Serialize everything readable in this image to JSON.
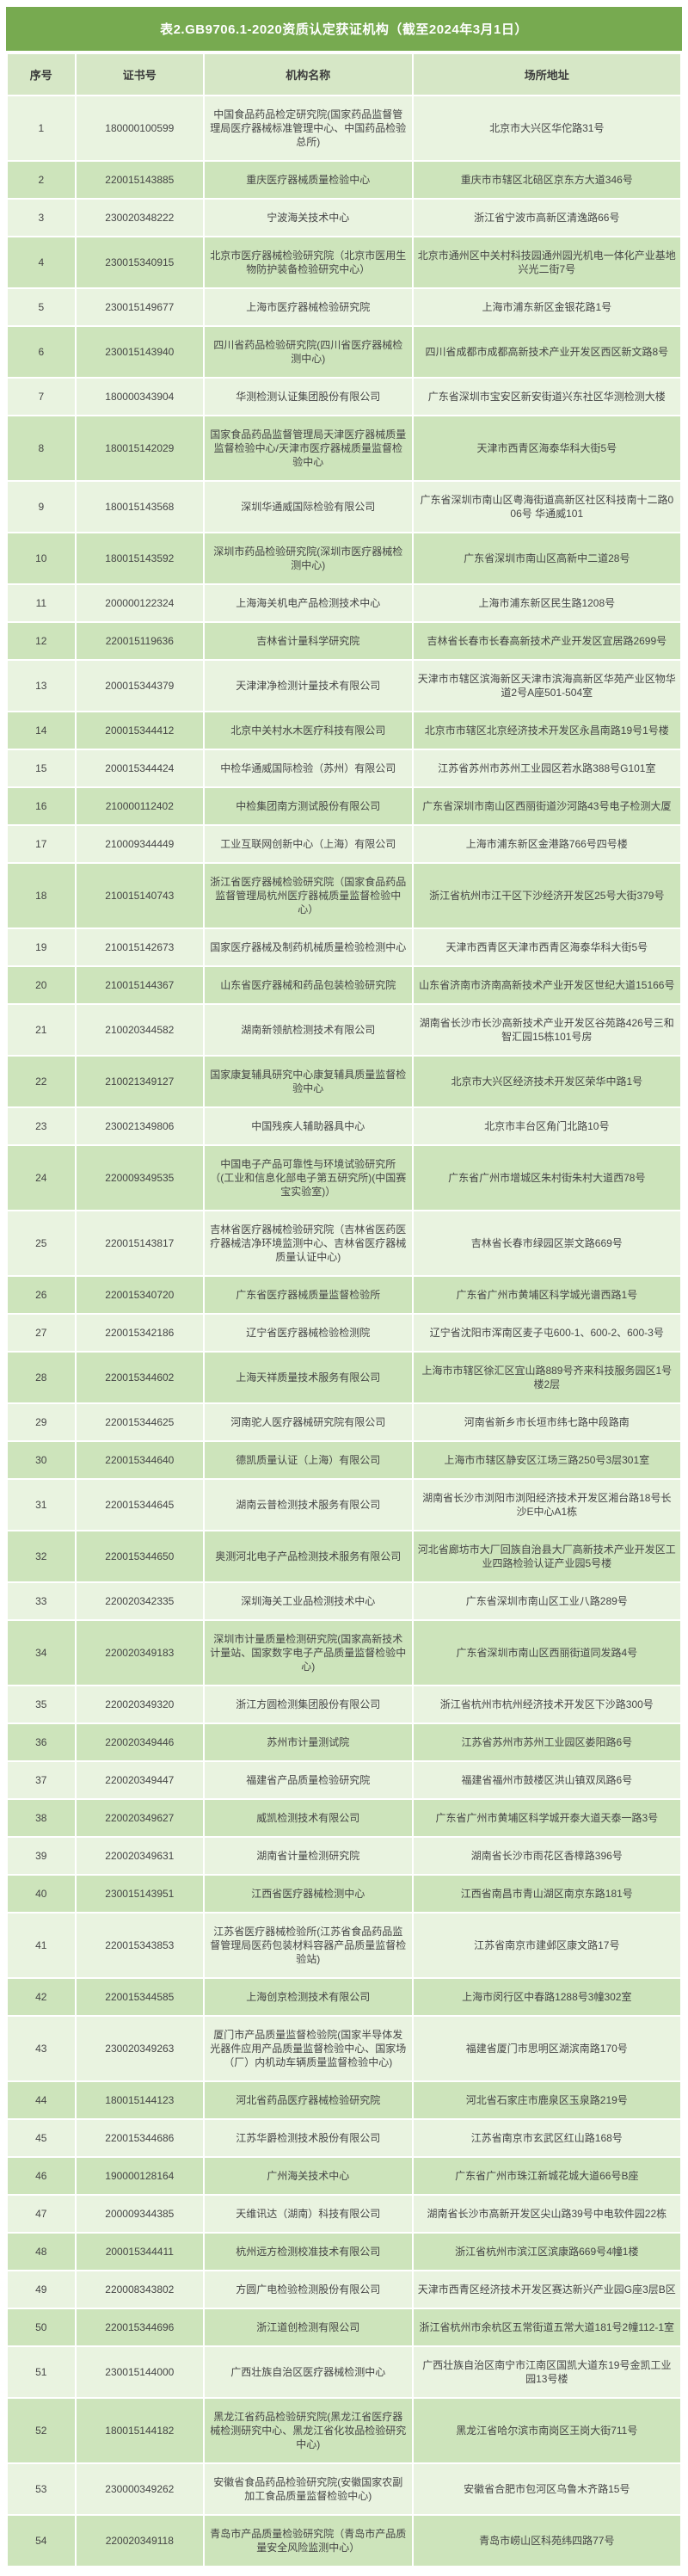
{
  "table": {
    "title": "表2.GB9706.1-2020资质认定获证机构（截至2024年3月1日）",
    "columns": [
      "序号",
      "证书号",
      "机构名称",
      "场所地址"
    ],
    "colors": {
      "title_bg": "#77aa50",
      "title_text": "#ffffff",
      "header_bg": "#d6e7c6",
      "row_odd_bg": "#e9f3e0",
      "row_even_bg": "#cde4bb",
      "text": "#454545",
      "grid": "#ffffff"
    },
    "rows": [
      [
        "1",
        "180000100599",
        "中国食品药品检定研究院(国家药品监督管理局医疗器械标准管理中心、中国药品检验总所)",
        "北京市大兴区华佗路31号"
      ],
      [
        "2",
        "220015143885",
        "重庆医疗器械质量检验中心",
        "重庆市市辖区北碚区京东方大道346号"
      ],
      [
        "3",
        "230020348222",
        "宁波海关技术中心",
        "浙江省宁波市高新区清逸路66号"
      ],
      [
        "4",
        "230015340915",
        "北京市医疗器械检验研究院（北京市医用生物防护装备检验研究中心）",
        "北京市通州区中关村科技园通州园光机电一体化产业基地兴光二街7号"
      ],
      [
        "5",
        "230015149677",
        "上海市医疗器械检验研究院",
        "上海市浦东新区金银花路1号"
      ],
      [
        "6",
        "230015143940",
        "四川省药品检验研究院(四川省医疗器械检测中心)",
        "四川省成都市成都高新技术产业开发区西区新文路8号"
      ],
      [
        "7",
        "180000343904",
        "华测检测认证集团股份有限公司",
        "广东省深圳市宝安区新安街道兴东社区华测检测大楼"
      ],
      [
        "8",
        "180015142029",
        "国家食品药品监督管理局天津医疗器械质量监督检验中心/天津市医疗器械质量监督检验中心",
        "天津市西青区海泰华科大街5号"
      ],
      [
        "9",
        "180015143568",
        "深圳华通威国际检验有限公司",
        "广东省深圳市南山区粤海街道高新区社区科技南十二路006号 华通威101"
      ],
      [
        "10",
        "180015143592",
        "深圳市药品检验研究院(深圳市医疗器械检测中心)",
        "广东省深圳市南山区高新中二道28号"
      ],
      [
        "11",
        "200000122324",
        "上海海关机电产品检测技术中心",
        "上海市浦东新区民生路1208号"
      ],
      [
        "12",
        "220015119636",
        "吉林省计量科学研究院",
        "吉林省长春市长春高新技术产业开发区宜居路2699号"
      ],
      [
        "13",
        "200015344379",
        "天津津净检测计量技术有限公司",
        "天津市市辖区滨海新区天津市滨海高新区华苑产业区物华道2号A座501-504室"
      ],
      [
        "14",
        "200015344412",
        "北京中关村水木医疗科技有限公司",
        "北京市市辖区北京经济技术开发区永昌南路19号1号楼"
      ],
      [
        "15",
        "200015344424",
        "中检华通威国际检验（苏州）有限公司",
        "江苏省苏州市苏州工业园区若水路388号G101室"
      ],
      [
        "16",
        "210000112402",
        "中检集团南方测试股份有限公司",
        "广东省深圳市南山区西丽街道沙河路43号电子检测大厦"
      ],
      [
        "17",
        "210009344449",
        "工业互联网创新中心（上海）有限公司",
        "上海市浦东新区金港路766号四号楼"
      ],
      [
        "18",
        "210015140743",
        "浙江省医疗器械检验研究院（国家食品药品监督管理局杭州医疗器械质量监督检验中心）",
        "浙江省杭州市江干区下沙经济开发区25号大街379号"
      ],
      [
        "19",
        "210015142673",
        "国家医疗器械及制药机械质量检验检测中心",
        "天津市西青区天津市西青区海泰华科大街5号"
      ],
      [
        "20",
        "210015144367",
        "山东省医疗器械和药品包装检验研究院",
        "山东省济南市济南高新技术产业开发区世纪大道15166号"
      ],
      [
        "21",
        "210020344582",
        "湖南新领航检测技术有限公司",
        "湖南省长沙市长沙高新技术产业开发区谷苑路426号三和智汇园15栋101号房"
      ],
      [
        "22",
        "210021349127",
        "国家康复辅具研究中心康复辅具质量监督检验中心",
        "北京市大兴区经济技术开发区荣华中路1号"
      ],
      [
        "23",
        "230021349806",
        "中国残疾人辅助器具中心",
        "北京市丰台区角门北路10号"
      ],
      [
        "24",
        "220009349535",
        "中国电子产品可靠性与环境试验研究所（(工业和信息化部电子第五研究所)(中国赛宝实验室)）",
        "广东省广州市增城区朱村街朱村大道西78号"
      ],
      [
        "25",
        "220015143817",
        "吉林省医疗器械检验研究院（吉林省医药医疗器械洁净环境监测中心、吉林省医疗器械质量认证中心)",
        "吉林省长春市绿园区崇文路669号"
      ],
      [
        "26",
        "220015340720",
        "广东省医疗器械质量监督检验所",
        "广东省广州市黄埔区科学城光谱西路1号"
      ],
      [
        "27",
        "220015342186",
        "辽宁省医疗器械检验检测院",
        "辽宁省沈阳市浑南区麦子屯600-1、600-2、600-3号"
      ],
      [
        "28",
        "220015344602",
        "上海天祥质量技术服务有限公司",
        "上海市市辖区徐汇区宜山路889号齐来科技服务园区1号楼2层"
      ],
      [
        "29",
        "220015344625",
        "河南驼人医疗器械研究院有限公司",
        "河南省新乡市长垣市纬七路中段路南"
      ],
      [
        "30",
        "220015344640",
        "德凯质量认证（上海）有限公司",
        "上海市市辖区静安区江场三路250号3层301室"
      ],
      [
        "31",
        "220015344645",
        "湖南云普检测技术服务有限公司",
        "湖南省长沙市浏阳市浏阳经济技术开发区湘台路18号长沙E中心A1栋"
      ],
      [
        "32",
        "220015344650",
        "奥测河北电子产品检测技术服务有限公司",
        "河北省廊坊市大厂回族自治县大厂高新技术产业开发区工业四路检验认证产业园5号楼"
      ],
      [
        "33",
        "220020342335",
        "深圳海关工业品检测技术中心",
        "广东省深圳市南山区工业八路289号"
      ],
      [
        "34",
        "220020349183",
        "深圳市计量质量检测研究院(国家高新技术计量站、国家数字电子产品质量监督检验中心)",
        "广东省深圳市南山区西丽街道同发路4号"
      ],
      [
        "35",
        "220020349320",
        "浙江方圆检测集团股份有限公司",
        "浙江省杭州市杭州经济技术开发区下沙路300号"
      ],
      [
        "36",
        "220020349446",
        "苏州市计量测试院",
        "江苏省苏州市苏州工业园区娄阳路6号"
      ],
      [
        "37",
        "220020349447",
        "福建省产品质量检验研究院",
        "福建省福州市鼓楼区洪山镇双凤路6号"
      ],
      [
        "38",
        "220020349627",
        "威凯检测技术有限公司",
        "广东省广州市黄埔区科学城开泰大道天泰一路3号"
      ],
      [
        "39",
        "220020349631",
        "湖南省计量检测研究院",
        "湖南省长沙市雨花区香樟路396号"
      ],
      [
        "40",
        "230015143951",
        "江西省医疗器械检测中心",
        "江西省南昌市青山湖区南京东路181号"
      ],
      [
        "41",
        "220015343853",
        "江苏省医疗器械检验所(江苏省食品药品监督管理局医药包装材料容器产品质量监督检验站)",
        "江苏省南京市建邺区康文路17号"
      ],
      [
        "42",
        "220015344585",
        "上海创京检测技术有限公司",
        "上海市闵行区中春路1288号3幢302室"
      ],
      [
        "43",
        "230020349263",
        "厦门市产品质量监督检验院(国家半导体发光器件应用产品质量监督检验中心、国家场（厂）内机动车辆质量监督检验中心)",
        "福建省厦门市思明区湖滨南路170号"
      ],
      [
        "44",
        "180015144123",
        "河北省药品医疗器械检验研究院",
        "河北省石家庄市鹿泉区玉泉路219号"
      ],
      [
        "45",
        "220015344686",
        "江苏华爵检测技术股份有限公司",
        "江苏省南京市玄武区红山路168号"
      ],
      [
        "46",
        "190000128164",
        "广州海关技术中心",
        "广东省广州市珠江新城花城大道66号B座"
      ],
      [
        "47",
        "200009344385",
        "天维讯达（湖南）科技有限公司",
        "湖南省长沙市高新开发区尖山路39号中电软件园22栋"
      ],
      [
        "48",
        "200015344411",
        "杭州远方检测校准技术有限公司",
        "浙江省杭州市滨江区滨康路669号4幢1楼"
      ],
      [
        "49",
        "220008343802",
        "方圆广电检验检测股份有限公司",
        "天津市西青区经济技术开发区赛达新兴产业园G座3层B区"
      ],
      [
        "50",
        "220015344696",
        "浙江道创检测有限公司",
        "浙江省杭州市余杭区五常街道五常大道181号2幢112-1室"
      ],
      [
        "51",
        "230015144000",
        "广西壮族自治区医疗器械检测中心",
        "广西壮族自治区南宁市江南区国凯大道东19号金凯工业园13号楼"
      ],
      [
        "52",
        "180015144182",
        "黑龙江省药品检验研究院(黑龙江省医疗器械检测研究中心、黑龙江省化妆品检验研究中心)",
        "黑龙江省哈尔滨市南岗区王岗大街711号"
      ],
      [
        "53",
        "230000349262",
        "安徽省食品药品检验研究院(安徽国家农副加工食品质量监督检验中心)",
        "安徽省合肥市包河区乌鲁木齐路15号"
      ],
      [
        "54",
        "220020349118",
        "青岛市产品质量检验研究院（青岛市产品质量安全风险监测中心）",
        "青岛市崂山区科苑纬四路77号"
      ]
    ]
  }
}
